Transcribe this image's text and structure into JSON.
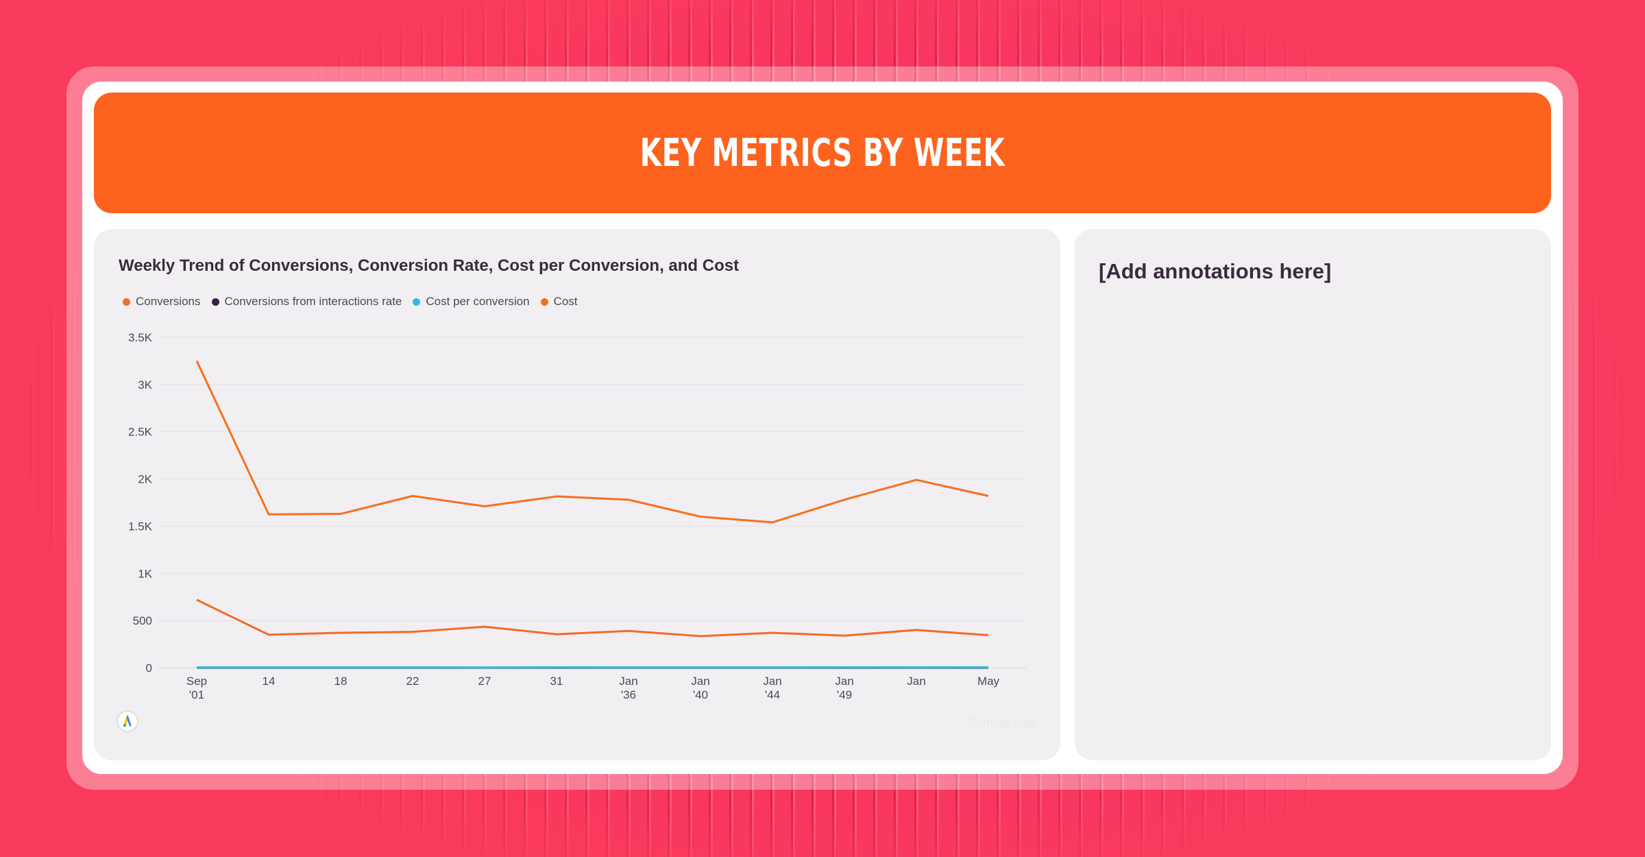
{
  "header": {
    "title": "KEY METRICS BY WEEK"
  },
  "chart_panel": {
    "title": "Weekly Trend of Conversions, Conversion Rate, Cost per Conversion, and Cost",
    "watermark": "Sample data",
    "logo_icon": "google-ads-icon"
  },
  "annotation_panel": {
    "title": "[Add annotations here]"
  },
  "colors": {
    "header_bg": "#fd621e",
    "conversions": "#f26b2a",
    "conversion_rate": "#3b2140",
    "cost_per_conversion": "#2bbfe0",
    "cost": "#f7701f"
  },
  "chart_data": {
    "type": "line",
    "legend_position": "top-left",
    "grid": true,
    "categories": [
      [
        "Sep",
        "'01"
      ],
      [
        "14"
      ],
      [
        "18"
      ],
      [
        "22"
      ],
      [
        "27"
      ],
      [
        "31"
      ],
      [
        "Jan",
        "'36"
      ],
      [
        "Jan",
        "'40"
      ],
      [
        "Jan",
        "'44"
      ],
      [
        "Jan",
        "'49"
      ],
      [
        "Jan"
      ],
      [
        "May"
      ]
    ],
    "y_ticks": [
      "0",
      "500",
      "1K",
      "1.5K",
      "2K",
      "2.5K",
      "3K",
      "3.5K"
    ],
    "ylim": [
      0,
      3500
    ],
    "series": [
      {
        "name": "Conversions",
        "color": "#f26b2a",
        "values": [
          720,
          350,
          370,
          380,
          435,
          355,
          390,
          335,
          370,
          340,
          400,
          345
        ]
      },
      {
        "name": "Conversions from interactions rate",
        "color": "#3b2140",
        "values": [
          0.5,
          0.5,
          0.5,
          0.5,
          0.5,
          0.5,
          0.5,
          0.5,
          0.5,
          0.5,
          0.5,
          0.5
        ]
      },
      {
        "name": "Cost per conversion",
        "color": "#2bbfe0",
        "values": [
          4.5,
          4.6,
          4.4,
          4.7,
          3.9,
          5.1,
          4.5,
          4.7,
          4.1,
          5.3,
          4.9,
          5.2
        ]
      },
      {
        "name": "Cost",
        "color": "#f7701f",
        "values": [
          3250,
          1625,
          1630,
          1820,
          1710,
          1815,
          1780,
          1600,
          1540,
          1780,
          1990,
          1820
        ]
      }
    ]
  }
}
